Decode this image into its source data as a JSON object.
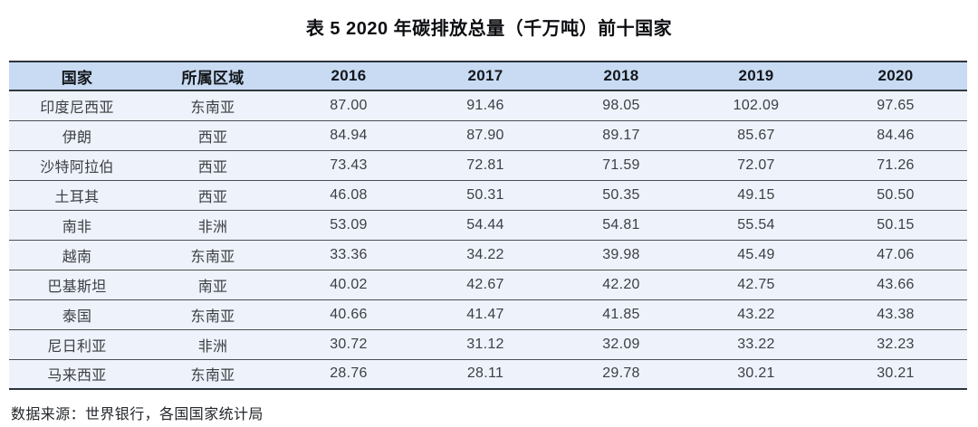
{
  "title": "表 5 2020 年碳排放总量（千万吨）前十国家",
  "source_note": "数据来源：世界银行，各国国家统计局",
  "colors": {
    "header_bg": "#c8dbf3",
    "row_bg": "#eef2fa",
    "border_heavy": "#2e343c",
    "border_row": "#4a4f58"
  },
  "chart_data": {
    "type": "table",
    "title": "表 5 2020 年碳排放总量（千万吨）前十国家",
    "columns": [
      "国家",
      "所属区域",
      "2016",
      "2017",
      "2018",
      "2019",
      "2020"
    ],
    "rows": [
      [
        "印度尼西亚",
        "东南亚",
        "87.00",
        "91.46",
        "98.05",
        "102.09",
        "97.65"
      ],
      [
        "伊朗",
        "西亚",
        "84.94",
        "87.90",
        "89.17",
        "85.67",
        "84.46"
      ],
      [
        "沙特阿拉伯",
        "西亚",
        "73.43",
        "72.81",
        "71.59",
        "72.07",
        "71.26"
      ],
      [
        "土耳其",
        "西亚",
        "46.08",
        "50.31",
        "50.35",
        "49.15",
        "50.50"
      ],
      [
        "南非",
        "非洲",
        "53.09",
        "54.44",
        "54.81",
        "55.54",
        "50.15"
      ],
      [
        "越南",
        "东南亚",
        "33.36",
        "34.22",
        "39.98",
        "45.49",
        "47.06"
      ],
      [
        "巴基斯坦",
        "南亚",
        "40.02",
        "42.67",
        "42.20",
        "42.75",
        "43.66"
      ],
      [
        "泰国",
        "东南亚",
        "40.66",
        "41.47",
        "41.85",
        "43.22",
        "43.38"
      ],
      [
        "尼日利亚",
        "非洲",
        "30.72",
        "31.12",
        "32.09",
        "33.22",
        "32.23"
      ],
      [
        "马来西亚",
        "东南亚",
        "28.76",
        "28.11",
        "29.78",
        "30.21",
        "30.21"
      ]
    ]
  }
}
